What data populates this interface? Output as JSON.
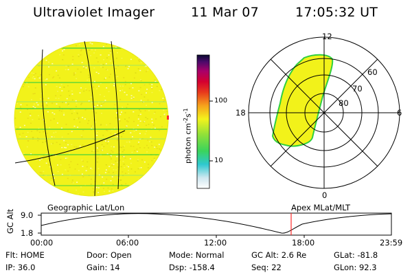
{
  "header": {
    "instrument": "Ultraviolet Imager",
    "date": "11 Mar 07",
    "time": "17:05:32 UT"
  },
  "colorbar": {
    "unit_text": "photon cm",
    "unit_exp1": "-2",
    "unit_mid": "s",
    "unit_exp2": "-1",
    "ticks": [
      "100",
      "10"
    ]
  },
  "polar_plot": {
    "mlt_labels": {
      "top": "12",
      "left": "18",
      "right": "6",
      "bottom": "0"
    },
    "lat_labels": [
      "60",
      "70",
      "80"
    ]
  },
  "geo_image": {
    "label": "Geographic Lat/Lon"
  },
  "apex_label": "Apex MLat/MLT",
  "orbit_plot": {
    "ylabel": "GC Alt",
    "yticks": [
      "9.0",
      "1.8"
    ],
    "xticks": [
      "00:00",
      "06:00",
      "12:00",
      "18:00",
      "23:59"
    ]
  },
  "status": [
    [
      {
        "key": "Flt:",
        "val": "HOME"
      },
      {
        "key": "Door:",
        "val": "Open"
      },
      {
        "key": "Mode:",
        "val": "Normal"
      },
      {
        "key": "GC Alt:",
        "val": "2.6 Re"
      },
      {
        "key": "GLat:",
        "val": "-81.8"
      }
    ],
    [
      {
        "key": "IP:",
        "val": "36.0"
      },
      {
        "key": "Gain:",
        "val": "14"
      },
      {
        "key": "Dsp:",
        "val": "-158.4"
      },
      {
        "key": "Seq:",
        "val": "22"
      },
      {
        "key": "GLon:",
        "val": "92.3"
      }
    ]
  ],
  "colors": {
    "image_fill": "#f2f21a",
    "noise": "#d4d415",
    "marker": "#ff2a2a",
    "stripe": "#3fd13f"
  }
}
